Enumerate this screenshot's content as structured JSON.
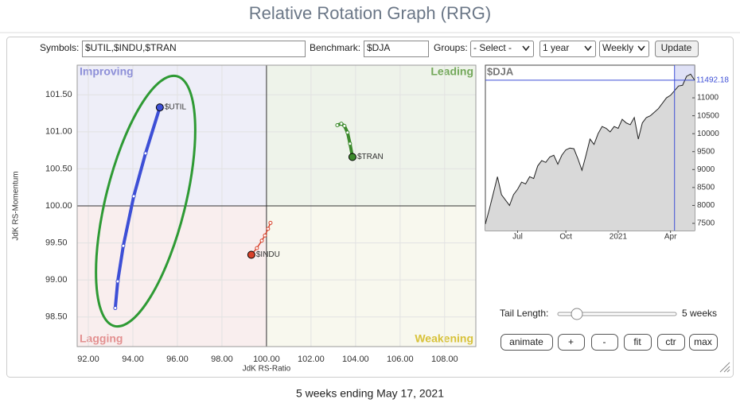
{
  "title": "Relative Rotation Graph (RRG)",
  "controls": {
    "symbols_label": "Symbols:",
    "symbols": "$UTIL,$INDU,$TRAN",
    "benchmark_label": "Benchmark:",
    "benchmark": "$DJA",
    "groups_label": "Groups:",
    "groups": "- Select -",
    "period": "1 year",
    "frequency": "Weekly",
    "update": "Update",
    "tail_length_label": "Tail Length:",
    "tail_length": "5 weeks",
    "buttons": [
      "animate",
      "+",
      "-",
      "fit",
      "ctr",
      "max"
    ]
  },
  "chart_data": [
    {
      "type": "rrg",
      "xlabel": "JdK RS-Ratio",
      "ylabel": "JdK RS-Momentum",
      "xlim": [
        91.5,
        109.4
      ],
      "ylim": [
        98.1,
        101.9
      ],
      "center": [
        100,
        100
      ],
      "grid": true,
      "xticks": [
        {
          "value": 92,
          "label": "92.00"
        },
        {
          "value": 94,
          "label": "94.00"
        },
        {
          "value": 96,
          "label": "96.00"
        },
        {
          "value": 98,
          "label": "98.00"
        },
        {
          "value": 100,
          "label": "100.00"
        },
        {
          "value": 102,
          "label": "102.00"
        },
        {
          "value": 104,
          "label": "104.00"
        },
        {
          "value": 106,
          "label": "106.00"
        },
        {
          "value": 108,
          "label": "108.00"
        }
      ],
      "yticks": [
        {
          "value": 98.5,
          "label": "98.50"
        },
        {
          "value": 99,
          "label": "99.00"
        },
        {
          "value": 99.5,
          "label": "99.50"
        },
        {
          "value": 100,
          "label": "100.00"
        },
        {
          "value": 100.5,
          "label": "100.50"
        },
        {
          "value": 101,
          "label": "101.00"
        },
        {
          "value": 101.5,
          "label": "101.50"
        }
      ],
      "quadrants": [
        {
          "label": "Improving",
          "color": "#8d8fd8",
          "background": "#eeeef8",
          "corner": "top-left"
        },
        {
          "label": "Leading",
          "color": "#73a85a",
          "background": "#eef3ea",
          "corner": "top-right"
        },
        {
          "label": "Lagging",
          "color": "#e39090",
          "background": "#f9eeee",
          "corner": "bottom-left"
        },
        {
          "label": "Weakening",
          "color": "#d8c23a",
          "background": "#f8f8ee",
          "corner": "bottom-right"
        }
      ],
      "series": [
        {
          "name": "$UTIL",
          "color": "#3d4fd6",
          "x": [
            93.21,
            93.32,
            93.57,
            94.04,
            94.57,
            95.21
          ],
          "values": [
            98.62,
            98.98,
            99.46,
            100.13,
            100.71,
            101.33
          ]
        },
        {
          "name": "$INDU",
          "color": "#d8412a",
          "x": [
            100.18,
            100.07,
            99.93,
            99.79,
            99.57,
            99.32
          ],
          "values": [
            99.77,
            99.69,
            99.6,
            99.53,
            99.43,
            99.34
          ]
        },
        {
          "name": "$TRAN",
          "color": "#3c8a2c",
          "x": [
            103.18,
            103.36,
            103.5,
            103.64,
            103.75,
            103.86
          ],
          "values": [
            101.09,
            101.11,
            101.08,
            100.99,
            100.84,
            100.66
          ]
        }
      ]
    },
    {
      "type": "line",
      "title": "$DJA",
      "color": "#222222",
      "fill": "#d9d9d9",
      "ylim": [
        7300,
        11910
      ],
      "yticks": [
        7500,
        8000,
        8500,
        9000,
        9500,
        10000,
        10500,
        11000
      ],
      "categories": [
        null,
        null,
        null,
        null,
        null,
        null,
        null,
        null,
        "Jul",
        null,
        null,
        null,
        null,
        null,
        null,
        null,
        null,
        null,
        null,
        null,
        "Oct",
        null,
        null,
        null,
        null,
        null,
        null,
        null,
        null,
        null,
        null,
        null,
        null,
        "2021",
        null,
        null,
        null,
        null,
        null,
        null,
        null,
        null,
        null,
        null,
        null,
        null,
        "Apr",
        null,
        null,
        null,
        null,
        null,
        null
      ],
      "values": [
        7480,
        7900,
        8350,
        8800,
        8300,
        8150,
        8000,
        8300,
        8450,
        8650,
        8600,
        8800,
        8750,
        9100,
        9250,
        9200,
        9350,
        9400,
        9150,
        9400,
        9550,
        9600,
        9580,
        9300,
        8980,
        9400,
        9850,
        9700,
        10000,
        10200,
        10150,
        10050,
        10200,
        10150,
        10400,
        10300,
        10250,
        10450,
        9850,
        10300,
        10450,
        10500,
        10600,
        10700,
        10850,
        11000,
        11070,
        11200,
        11330,
        11350,
        11600,
        11660,
        11492.18
      ]
    }
  ],
  "footer": "5 weeks ending May 17, 2021"
}
